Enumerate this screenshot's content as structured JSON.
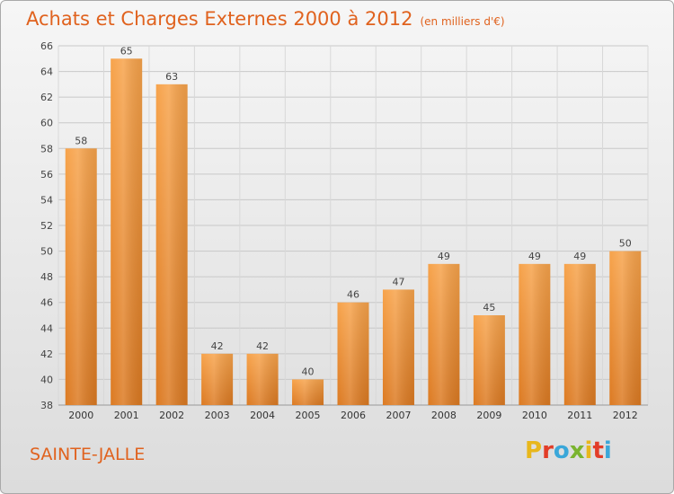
{
  "title": "Achats et Charges Externes 2000 à 2012",
  "subtitle": "(en milliers d'€)",
  "city": "SAINTE-JALLE",
  "logo": {
    "letters": [
      "P",
      "r",
      "o",
      "x",
      "i",
      "t",
      "i"
    ],
    "colors": [
      "#e8b71c",
      "#e23d28",
      "#3aa7d9",
      "#7ab42f",
      "#e8b71c",
      "#e23d28",
      "#3aa7d9"
    ]
  },
  "colors": {
    "accent": "#e0621e",
    "bar_light": "#f7a34b",
    "bar_dark": "#dc7a22"
  },
  "chart_data": {
    "type": "bar",
    "categories": [
      "2000",
      "2001",
      "2002",
      "2003",
      "2004",
      "2005",
      "2006",
      "2007",
      "2008",
      "2009",
      "2010",
      "2011",
      "2012"
    ],
    "values": [
      58,
      65,
      63,
      42,
      42,
      40,
      46,
      47,
      49,
      45,
      49,
      49,
      50
    ],
    "ylim": [
      38,
      66
    ],
    "yticks": [
      38,
      40,
      42,
      44,
      46,
      48,
      50,
      52,
      54,
      56,
      58,
      60,
      62,
      64,
      66
    ],
    "grid": true
  }
}
